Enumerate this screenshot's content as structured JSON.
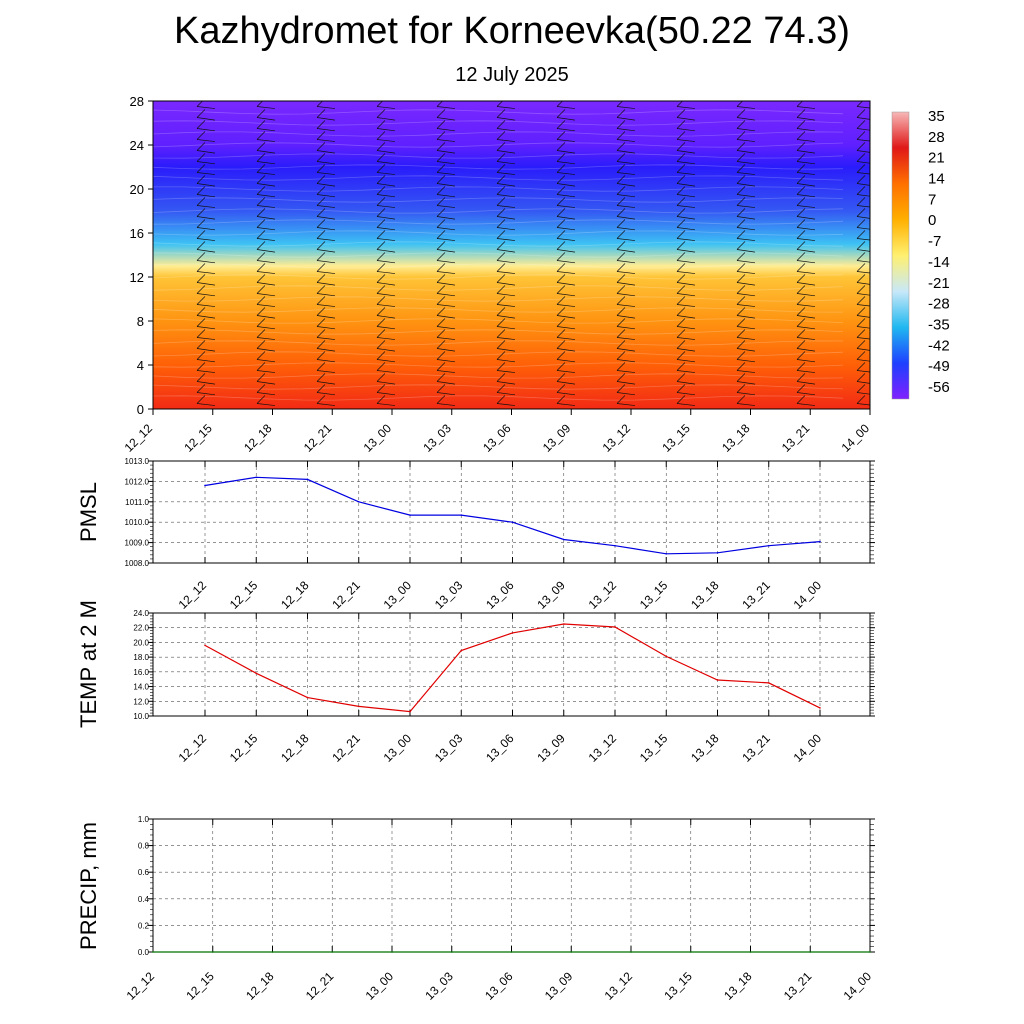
{
  "title": "Kazhydromet for Korneevka(50.22 74.3)",
  "subtitle": "12 July 2025",
  "time_labels": [
    "12_12",
    "12_15",
    "12_18",
    "12_21",
    "13_00",
    "13_03",
    "13_06",
    "13_09",
    "13_12",
    "13_15",
    "13_18",
    "13_21",
    "14_00"
  ],
  "colorbar": {
    "labels": [
      "35",
      "28",
      "21",
      "14",
      "7",
      "0",
      "-7",
      "-14",
      "-21",
      "-28",
      "-35",
      "-42",
      "-49",
      "-56"
    ],
    "colors": [
      "#f7b8b8",
      "#e01818",
      "#ff7000",
      "#ffb000",
      "#fff070",
      "#c8e8f8",
      "#20b8f0",
      "#1e40ff",
      "#8020ff"
    ]
  },
  "chart_data": [
    {
      "type": "heatmap",
      "name": "upper-air temperature cross-section with wind barbs",
      "xlabel": "",
      "ylabel": "",
      "x": [
        "12_12",
        "12_15",
        "12_18",
        "12_21",
        "13_00",
        "13_03",
        "13_06",
        "13_09",
        "13_12",
        "13_15",
        "13_18",
        "13_21",
        "14_00"
      ],
      "y_ticks": [
        0,
        4,
        8,
        12,
        16,
        20,
        24,
        28
      ],
      "ylim": [
        0,
        28
      ],
      "legend": "right",
      "color_scale": [
        -56,
        35
      ],
      "temperature_profile": [
        {
          "level": 0,
          "value": 24
        },
        {
          "level": 4,
          "value": 17
        },
        {
          "level": 8,
          "value": 8
        },
        {
          "level": 12,
          "value": -2
        },
        {
          "level": 13,
          "value": -10
        },
        {
          "level": 15,
          "value": -22
        },
        {
          "level": 18,
          "value": -38
        },
        {
          "level": 22,
          "value": -48
        },
        {
          "level": 24,
          "value": -54
        },
        {
          "level": 28,
          "value": -56
        }
      ]
    },
    {
      "type": "line",
      "ylabel": "PMSL",
      "x": [
        "12_12",
        "12_15",
        "12_18",
        "12_21",
        "13_00",
        "13_03",
        "13_06",
        "13_09",
        "13_12",
        "13_15",
        "13_18",
        "13_21",
        "14_00"
      ],
      "ylim": [
        1008.0,
        1013.0
      ],
      "y_ticks": [
        "1008.0",
        "1009.0",
        "1010.0",
        "1011.0",
        "1012.0",
        "1013.0"
      ],
      "grid": true,
      "series": [
        {
          "values": [
            1011.8,
            1012.2,
            1012.1,
            1011.0,
            1010.35,
            1010.35,
            1010.0,
            1009.15,
            1008.85,
            1008.45,
            1008.5,
            1008.85,
            1009.05
          ],
          "color": "#0000e0"
        }
      ]
    },
    {
      "type": "line",
      "ylabel": "TEMP at 2 M",
      "x": [
        "12_12",
        "12_15",
        "12_18",
        "12_21",
        "13_00",
        "13_03",
        "13_06",
        "13_09",
        "13_12",
        "13_15",
        "13_18",
        "13_21",
        "14_00"
      ],
      "ylim": [
        10.0,
        24.0
      ],
      "y_ticks": [
        "10.0",
        "12.0",
        "14.0",
        "16.0",
        "18.0",
        "20.0",
        "22.0",
        "24.0"
      ],
      "grid": true,
      "series": [
        {
          "values": [
            19.6,
            15.8,
            12.5,
            11.3,
            10.6,
            18.9,
            21.3,
            22.5,
            22.1,
            18.1,
            14.9,
            14.5,
            11.1
          ],
          "color": "#e00000"
        }
      ]
    },
    {
      "type": "line",
      "ylabel": "PRECIP, mm",
      "x": [
        "12_12",
        "12_15",
        "12_18",
        "12_21",
        "13_00",
        "13_03",
        "13_06",
        "13_09",
        "13_12",
        "13_15",
        "13_18",
        "13_21",
        "14_00"
      ],
      "ylim": [
        0.0,
        1.0
      ],
      "y_ticks": [
        "0.0",
        "0.2",
        "0.4",
        "0.6",
        "0.8",
        "1.0"
      ],
      "grid": true,
      "series": [
        {
          "values": [
            0,
            0,
            0,
            0,
            0,
            0,
            0,
            0,
            0,
            0,
            0,
            0,
            0
          ],
          "color": "#007000"
        }
      ]
    }
  ]
}
